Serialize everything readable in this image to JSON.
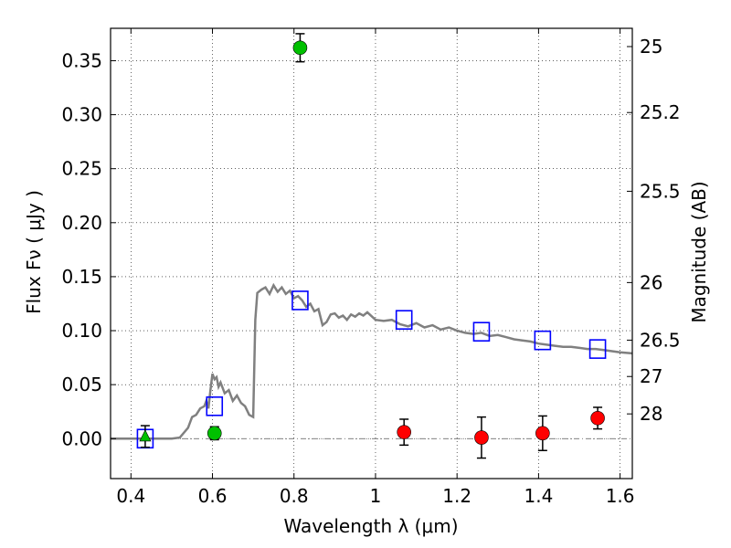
{
  "chart_data": {
    "type": "scatter",
    "xlabel": "Wavelength  λ (μm)",
    "ylabel": "Flux  Fν  ( μJy )",
    "ylabel_right": "Magnitude (AB)",
    "xlim": [
      0.35,
      1.63
    ],
    "ylim": [
      -0.037,
      0.38
    ],
    "grid": true,
    "x_ticks": [
      0.4,
      0.6,
      0.8,
      1.0,
      1.2,
      1.4,
      1.6
    ],
    "x_tick_labels": [
      "0.4",
      "0.6",
      "0.8",
      "1",
      "1.2",
      "1.4",
      "1.6"
    ],
    "y_ticks": [
      0.0,
      0.05,
      0.1,
      0.15,
      0.2,
      0.25,
      0.3,
      0.35
    ],
    "y_tick_labels": [
      "0.00",
      "0.05",
      "0.10",
      "0.15",
      "0.20",
      "0.25",
      "0.30",
      "0.35"
    ],
    "right_ticks": [
      {
        "label": "25",
        "mag": 25.0
      },
      {
        "label": "25.2",
        "mag": 25.2
      },
      {
        "label": "25.5",
        "mag": 25.5
      },
      {
        "label": "26",
        "mag": 26.0
      },
      {
        "label": "26.5",
        "mag": 26.5
      },
      {
        "label": "27",
        "mag": 27.0
      },
      {
        "label": "28",
        "mag": 28.0
      }
    ],
    "model_sed": {
      "color": "#808080",
      "x": [
        0.35,
        0.44,
        0.5,
        0.52,
        0.54,
        0.55,
        0.56,
        0.57,
        0.58,
        0.585,
        0.59,
        0.595,
        0.6,
        0.605,
        0.61,
        0.615,
        0.62,
        0.63,
        0.64,
        0.65,
        0.66,
        0.67,
        0.68,
        0.69,
        0.7,
        0.705,
        0.71,
        0.72,
        0.73,
        0.74,
        0.75,
        0.76,
        0.77,
        0.78,
        0.79,
        0.8,
        0.81,
        0.82,
        0.83,
        0.84,
        0.85,
        0.86,
        0.87,
        0.88,
        0.89,
        0.9,
        0.91,
        0.92,
        0.93,
        0.94,
        0.95,
        0.96,
        0.97,
        0.98,
        1.0,
        1.02,
        1.04,
        1.06,
        1.08,
        1.1,
        1.12,
        1.14,
        1.16,
        1.18,
        1.2,
        1.22,
        1.24,
        1.26,
        1.28,
        1.3,
        1.32,
        1.34,
        1.36,
        1.38,
        1.4,
        1.42,
        1.44,
        1.46,
        1.48,
        1.5,
        1.52,
        1.54,
        1.56,
        1.58,
        1.6,
        1.63
      ],
      "y": [
        0.0,
        0.0,
        0.0,
        0.001,
        0.01,
        0.02,
        0.022,
        0.028,
        0.03,
        0.035,
        0.028,
        0.045,
        0.06,
        0.055,
        0.057,
        0.048,
        0.052,
        0.042,
        0.045,
        0.035,
        0.04,
        0.033,
        0.03,
        0.022,
        0.02,
        0.11,
        0.135,
        0.138,
        0.14,
        0.134,
        0.142,
        0.136,
        0.14,
        0.134,
        0.137,
        0.13,
        0.132,
        0.128,
        0.122,
        0.125,
        0.118,
        0.12,
        0.105,
        0.108,
        0.115,
        0.116,
        0.112,
        0.114,
        0.11,
        0.115,
        0.113,
        0.116,
        0.114,
        0.117,
        0.11,
        0.109,
        0.11,
        0.106,
        0.104,
        0.107,
        0.103,
        0.105,
        0.101,
        0.103,
        0.1,
        0.098,
        0.097,
        0.098,
        0.095,
        0.096,
        0.094,
        0.092,
        0.091,
        0.09,
        0.088,
        0.087,
        0.086,
        0.085,
        0.085,
        0.084,
        0.083,
        0.083,
        0.082,
        0.081,
        0.08,
        0.079
      ]
    },
    "series": [
      {
        "marker": "square-open",
        "color": "#0000ff",
        "points": [
          [
            0.435,
            0.0
          ],
          [
            0.605,
            0.03
          ],
          [
            0.815,
            0.128
          ],
          [
            1.07,
            0.11
          ],
          [
            1.26,
            0.099
          ],
          [
            1.41,
            0.091
          ],
          [
            1.545,
            0.083
          ]
        ]
      },
      {
        "marker": "circle",
        "color": "#00c000",
        "points": [
          {
            "x": 0.605,
            "y": 0.005,
            "err": 0.006
          },
          {
            "x": 0.815,
            "y": 0.362,
            "err": 0.013
          }
        ]
      },
      {
        "marker": "triangle",
        "color": "#00c000",
        "points": [
          {
            "x": 0.435,
            "y": 0.002,
            "err": 0.01
          }
        ]
      },
      {
        "marker": "circle",
        "color": "#ff0000",
        "points": [
          {
            "x": 1.07,
            "y": 0.006,
            "err": 0.012
          },
          {
            "x": 1.26,
            "y": 0.001,
            "err": 0.019
          },
          {
            "x": 1.41,
            "y": 0.005,
            "err": 0.016
          },
          {
            "x": 1.545,
            "y": 0.019,
            "err": 0.01
          }
        ]
      }
    ]
  }
}
